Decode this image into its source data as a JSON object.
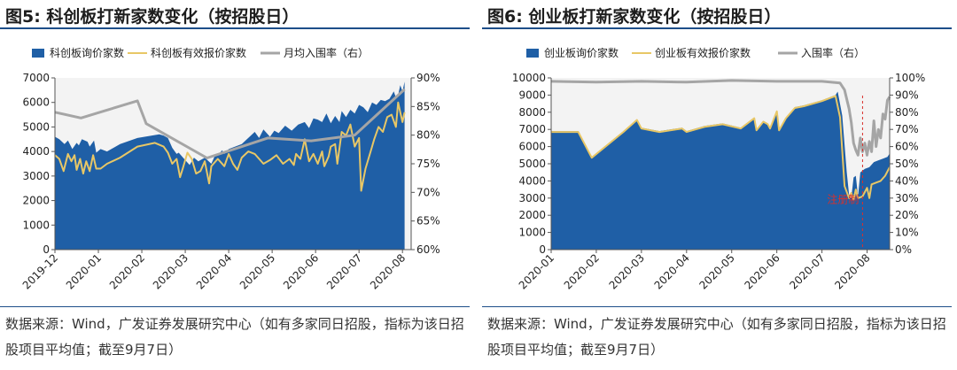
{
  "figures": [
    {
      "title": "图5:  科创板打新家数变化（按招股日）",
      "source": "数据来源：Wind，广发证券发展研究中心（如有多家同日招股，指标为该日招股项目平均值；截至9月7日）"
    },
    {
      "title": "图6:  创业板打新家数变化（按招股日）",
      "source": "数据来源：Wind，广发证券发展研究中心（如有多家同日招股，指标为该日招股项目平均值；截至9月7日）"
    }
  ],
  "chart_data": [
    {
      "type": "area",
      "title": "图5:  科创板打新家数变化（按招股日）",
      "x_ticks": [
        "2019-12",
        "2020-01",
        "2020-02",
        "2020-03",
        "2020-04",
        "2020-05",
        "2020-06",
        "2020-07",
        "2020-08"
      ],
      "x_range": [
        0,
        8.2
      ],
      "y_left": {
        "range": [
          0,
          7000
        ],
        "ticks": [
          "0",
          "1000",
          "2000",
          "3000",
          "4000",
          "5000",
          "6000",
          "7000"
        ]
      },
      "y_right": {
        "range": [
          60,
          90
        ],
        "ticks": [
          "60%",
          "65%",
          "70%",
          "75%",
          "80%",
          "85%",
          "90%"
        ]
      },
      "grid": false,
      "legend_position": "top",
      "series": [
        {
          "name": "科创板询价家数",
          "kind": "area",
          "axis": "left",
          "color": "#1f5fa6",
          "x": [
            0.0,
            0.1,
            0.22,
            0.3,
            0.4,
            0.5,
            0.55,
            0.62,
            0.75,
            0.8,
            0.9,
            0.95,
            1.05,
            1.2,
            1.5,
            1.9,
            2.4,
            2.5,
            2.6,
            2.7,
            2.8,
            2.85,
            2.95,
            3.1,
            3.2,
            3.3,
            3.45,
            3.6,
            3.7,
            3.75,
            3.85,
            3.9,
            4.0,
            4.3,
            4.6,
            4.7,
            4.8,
            4.95,
            5.05,
            5.15,
            5.3,
            5.45,
            5.6,
            5.75,
            5.85,
            5.95,
            6.05,
            6.15,
            6.25,
            6.35,
            6.45,
            6.55,
            6.6,
            6.7,
            6.8,
            6.9,
            7.0,
            7.1,
            7.2,
            7.3,
            7.4,
            7.5,
            7.6,
            7.7,
            7.8,
            7.85,
            7.9,
            7.95,
            8.0,
            8.05
          ],
          "values": [
            4600,
            4500,
            4300,
            4450,
            4100,
            4350,
            4250,
            4500,
            4400,
            4200,
            4450,
            3950,
            4100,
            4000,
            4300,
            4550,
            4700,
            4650,
            4550,
            4150,
            3900,
            3950,
            3750,
            3450,
            3750,
            3600,
            3750,
            3500,
            3900,
            3850,
            4050,
            3900,
            4100,
            4300,
            4800,
            4550,
            4900,
            4600,
            4850,
            4750,
            5050,
            4850,
            5100,
            5200,
            4950,
            5350,
            5300,
            5200,
            5550,
            5150,
            5450,
            5200,
            5650,
            5400,
            5700,
            5550,
            5900,
            5800,
            5600,
            6000,
            5900,
            6100,
            6050,
            6150,
            6450,
            6200,
            6300,
            6700,
            6450,
            6850
          ]
        },
        {
          "name": "科创板有效报价家数",
          "kind": "line",
          "axis": "left",
          "color": "#e8c766",
          "x": [
            0.0,
            0.1,
            0.2,
            0.3,
            0.38,
            0.45,
            0.5,
            0.58,
            0.65,
            0.72,
            0.8,
            0.88,
            0.95,
            1.05,
            1.2,
            1.5,
            1.9,
            2.3,
            2.5,
            2.6,
            2.7,
            2.8,
            2.88,
            2.95,
            3.05,
            3.15,
            3.25,
            3.35,
            3.45,
            3.55,
            3.6,
            3.65,
            3.75,
            3.9,
            4.0,
            4.1,
            4.2,
            4.3,
            4.45,
            4.6,
            4.8,
            4.95,
            5.1,
            5.25,
            5.4,
            5.5,
            5.55,
            5.65,
            5.75,
            5.85,
            5.95,
            6.05,
            6.15,
            6.2,
            6.3,
            6.35,
            6.45,
            6.5,
            6.6,
            6.7,
            6.8,
            6.9,
            7.0,
            7.05,
            7.15,
            7.3,
            7.35,
            7.45,
            7.55,
            7.65,
            7.75,
            7.85,
            7.9,
            7.95,
            8.0,
            8.05
          ],
          "values": [
            3850,
            3700,
            3200,
            3900,
            3600,
            3850,
            3250,
            3700,
            3100,
            3600,
            3200,
            3850,
            3300,
            3300,
            3500,
            3750,
            4200,
            4350,
            4200,
            3950,
            3500,
            3700,
            2950,
            3350,
            3950,
            3700,
            3100,
            3200,
            3600,
            2700,
            3400,
            3500,
            3700,
            3400,
            3900,
            3500,
            3250,
            3750,
            4000,
            3900,
            3500,
            3650,
            3850,
            3500,
            3700,
            3450,
            3900,
            3700,
            4500,
            3600,
            3900,
            3500,
            4000,
            3400,
            3800,
            4200,
            4300,
            3500,
            4800,
            4650,
            5100,
            4200,
            4550,
            2400,
            3300,
            4200,
            4500,
            5000,
            4800,
            5400,
            5500,
            5000,
            6000,
            5600,
            5200,
            5600
          ]
        },
        {
          "name": "月均入围率（右）",
          "kind": "line",
          "axis": "right",
          "color": "#a5a5a5",
          "x": [
            0.0,
            0.6,
            1.9,
            2.1,
            3.5,
            4.9,
            5.9,
            6.9,
            8.05
          ],
          "values": [
            84,
            83,
            86,
            82,
            76,
            79.5,
            79,
            80,
            88
          ]
        }
      ]
    },
    {
      "type": "area",
      "title": "图6:  创业板打新家数变化（按招股日）",
      "x_ticks": [
        "2020-01",
        "2020-02",
        "2020-03",
        "2020-04",
        "2020-05",
        "2020-06",
        "2020-07",
        "2020-08"
      ],
      "x_range": [
        0,
        7.5
      ],
      "y_left": {
        "range": [
          0,
          10000
        ],
        "ticks": [
          "0",
          "1000",
          "2000",
          "3000",
          "4000",
          "5000",
          "6000",
          "7000",
          "8000",
          "9000",
          "10000"
        ]
      },
      "y_right": {
        "range": [
          0,
          100
        ],
        "ticks": [
          "0%",
          "10%",
          "20%",
          "30%",
          "40%",
          "50%",
          "60%",
          "70%",
          "80%",
          "90%",
          "100%"
        ]
      },
      "grid": false,
      "legend_position": "top",
      "annotations": [
        {
          "text": "注册制",
          "x": 6.9
        }
      ],
      "series": [
        {
          "name": "创业板询价家数",
          "kind": "area",
          "axis": "left",
          "color": "#1f5fa6",
          "x": [
            0.0,
            0.6,
            0.9,
            1.6,
            1.9,
            2.0,
            2.4,
            2.9,
            3.0,
            3.4,
            3.8,
            4.2,
            4.5,
            4.55,
            4.7,
            4.8,
            4.85,
            5.0,
            5.05,
            5.2,
            5.4,
            5.6,
            6.0,
            6.3,
            6.35,
            6.45,
            6.55,
            6.6,
            6.65,
            6.7,
            6.75,
            6.8,
            6.85,
            6.95,
            7.05,
            7.15,
            7.25,
            7.35,
            7.45,
            7.5
          ],
          "values": [
            6900,
            6900,
            5400,
            6900,
            7600,
            7100,
            6900,
            7100,
            6900,
            7200,
            7350,
            7100,
            7700,
            7000,
            7500,
            7350,
            7100,
            8100,
            7000,
            7700,
            8300,
            8400,
            8700,
            9000,
            9200,
            7800,
            4500,
            3200,
            3000,
            4200,
            4300,
            3100,
            4500,
            4700,
            4800,
            5100,
            5200,
            5300,
            5400,
            5600
          ]
        },
        {
          "name": "创业板有效报价家数",
          "kind": "line",
          "axis": "left",
          "color": "#e8c766",
          "x": [
            0.0,
            0.6,
            0.9,
            1.6,
            1.9,
            2.0,
            2.4,
            2.9,
            3.0,
            3.4,
            3.8,
            4.2,
            4.5,
            4.55,
            4.7,
            4.8,
            4.85,
            5.0,
            5.05,
            5.2,
            5.4,
            5.6,
            6.0,
            6.3,
            6.4,
            6.5,
            6.6,
            6.65,
            6.7,
            6.75,
            6.8,
            6.9,
            7.0,
            7.05,
            7.1,
            7.2,
            7.3,
            7.4,
            7.5
          ],
          "values": [
            6850,
            6850,
            5350,
            6850,
            7550,
            7050,
            6850,
            7050,
            6850,
            7150,
            7300,
            7050,
            7650,
            6950,
            7450,
            7300,
            7050,
            8050,
            6950,
            7650,
            8250,
            8350,
            8650,
            8950,
            7700,
            3700,
            3000,
            3300,
            2900,
            3500,
            3000,
            3100,
            3600,
            3000,
            3800,
            3900,
            4000,
            4300,
            4800
          ]
        },
        {
          "name": "入围率（右）",
          "kind": "line",
          "axis": "right",
          "color": "#a5a5a5",
          "x": [
            0.0,
            1.0,
            2.0,
            3.0,
            4.0,
            5.0,
            6.0,
            6.4,
            6.5,
            6.6,
            6.65,
            6.7,
            6.75,
            6.8,
            6.85,
            6.9,
            6.95,
            7.0,
            7.05,
            7.1,
            7.15,
            7.2,
            7.25,
            7.3,
            7.35,
            7.4,
            7.45,
            7.5
          ],
          "values": [
            98,
            97.5,
            98,
            97.5,
            98.5,
            98,
            98,
            97,
            93,
            82,
            74,
            62,
            58,
            55,
            65,
            57,
            62,
            55,
            63,
            57,
            75,
            60,
            70,
            65,
            79,
            76,
            87,
            89
          ]
        }
      ]
    }
  ]
}
